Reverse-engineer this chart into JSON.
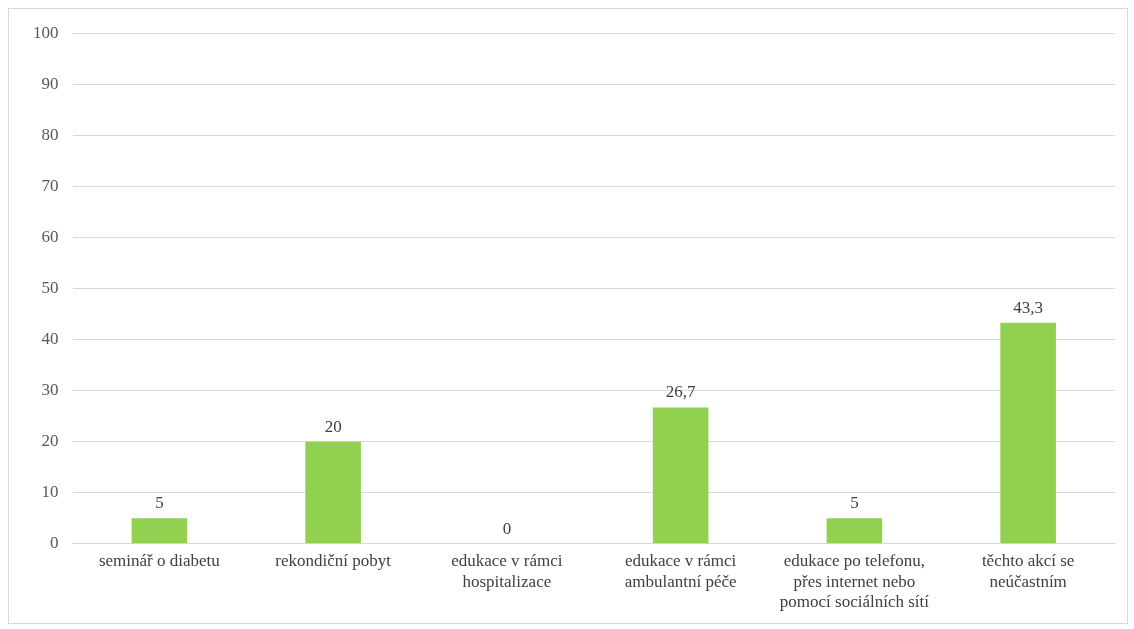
{
  "chart_data": {
    "type": "bar",
    "categories": [
      "seminář o diabetu",
      "rekondiční pobyt",
      "edukace v rámci hospitalizace",
      "edukace v rámci ambulantní péče",
      "edukace po telefonu, přes internet nebo pomocí sociálních sítí",
      "těchto akcí se neúčastním"
    ],
    "values": [
      5,
      20,
      0,
      26.7,
      5,
      43.3
    ],
    "value_labels": [
      "5",
      "20",
      "0",
      "26,7",
      "5",
      "43,3"
    ],
    "color": "#92d050",
    "ylim": [
      0,
      100
    ],
    "yticks": [
      0,
      10,
      20,
      30,
      40,
      50,
      60,
      70,
      80,
      90,
      100
    ],
    "grid": "y",
    "legend": false
  }
}
